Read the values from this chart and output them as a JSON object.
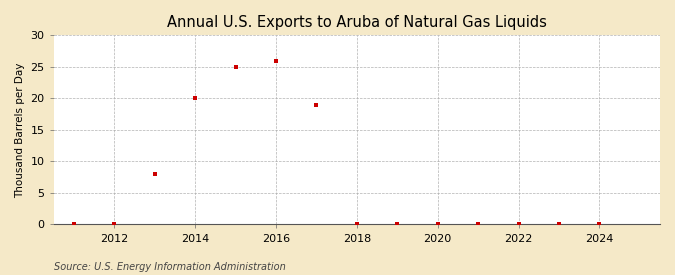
{
  "title": "Annual U.S. Exports to Aruba of Natural Gas Liquids",
  "ylabel": "Thousand Barrels per Day",
  "source": "Source: U.S. Energy Information Administration",
  "fig_bg_color": "#f5e9c8",
  "plot_bg_color": "#ffffff",
  "years": [
    2011,
    2012,
    2013,
    2014,
    2015,
    2016,
    2017,
    2018,
    2019,
    2020,
    2021,
    2022,
    2023,
    2024
  ],
  "values": [
    0,
    0,
    8,
    20,
    25,
    26,
    19,
    0,
    0,
    0,
    0,
    0,
    0,
    0
  ],
  "marker_color": "#cc0000",
  "xlim": [
    2010.5,
    2025.5
  ],
  "ylim": [
    0,
    30
  ],
  "yticks": [
    0,
    5,
    10,
    15,
    20,
    25,
    30
  ],
  "xticks": [
    2012,
    2014,
    2016,
    2018,
    2020,
    2022,
    2024
  ],
  "title_fontsize": 10.5,
  "label_fontsize": 7.5,
  "tick_fontsize": 8,
  "source_fontsize": 7
}
